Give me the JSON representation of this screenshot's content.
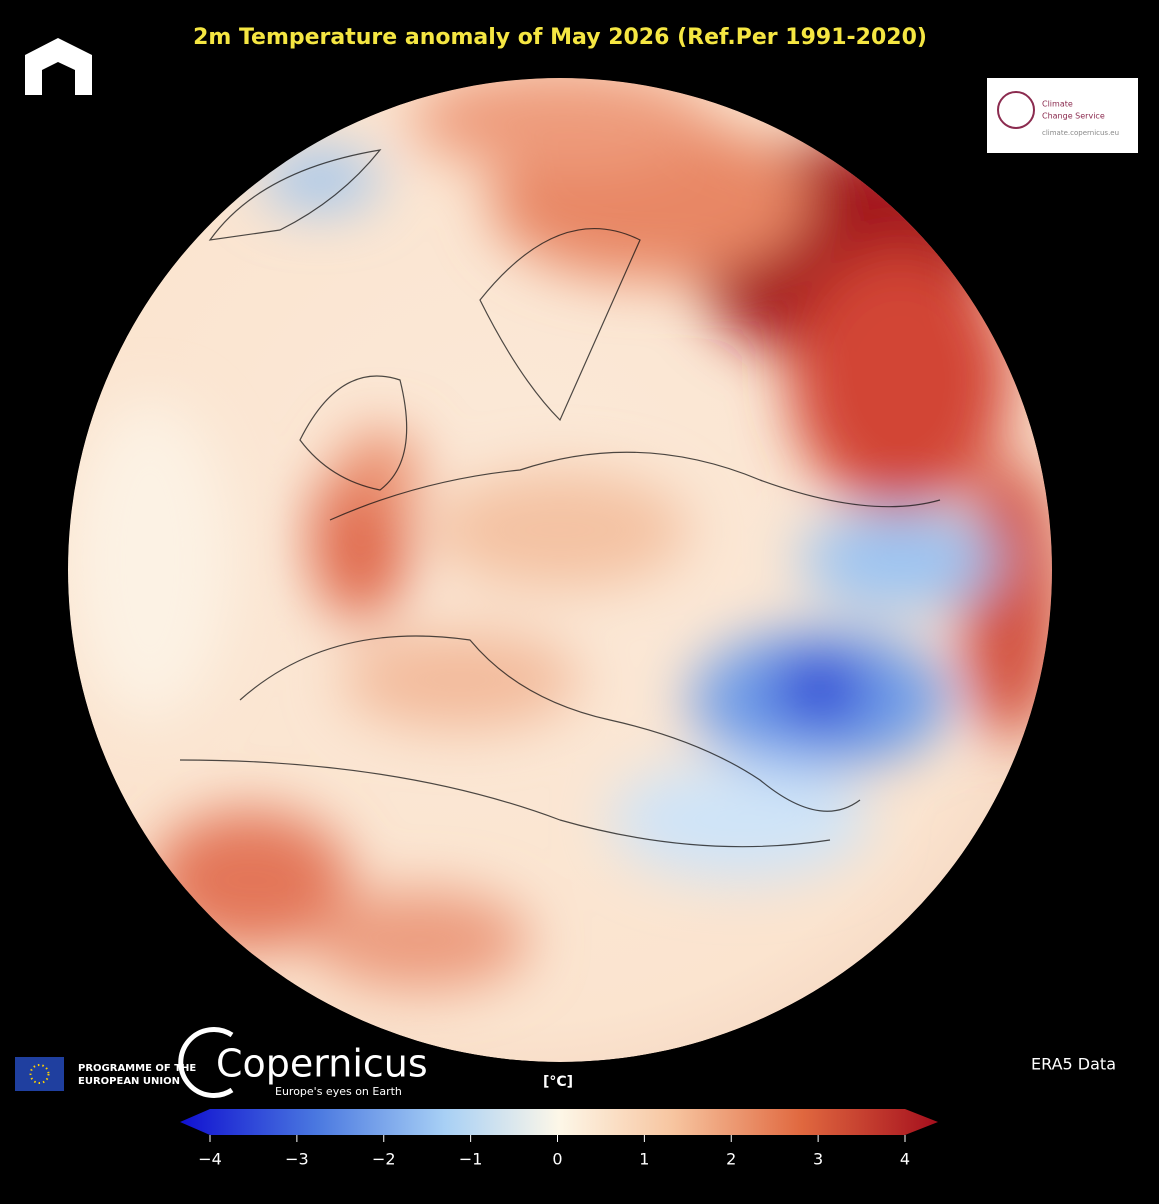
{
  "header": {
    "title": "2m Temperature anomaly of May 2026 (Ref.Per 1991-2020)"
  },
  "badge": {
    "line1": "Climate",
    "line2": "Change Service",
    "url": "climate.copernicus.eu"
  },
  "footer": {
    "programme_line1": "PROGRAMME OF THE",
    "programme_line2": "EUROPEAN UNION",
    "brand": "Copernicus",
    "tagline": "Europe's eyes on Earth",
    "source": "ERA5 Data"
  },
  "colorbar": {
    "label": "[°C]",
    "range": [
      -4,
      4
    ],
    "ticks": [
      {
        "value": -4,
        "label": "−4"
      },
      {
        "value": -3,
        "label": "−3"
      },
      {
        "value": -2,
        "label": "−2"
      },
      {
        "value": -1,
        "label": "−1"
      },
      0,
      1,
      2,
      3,
      4
    ]
  }
}
